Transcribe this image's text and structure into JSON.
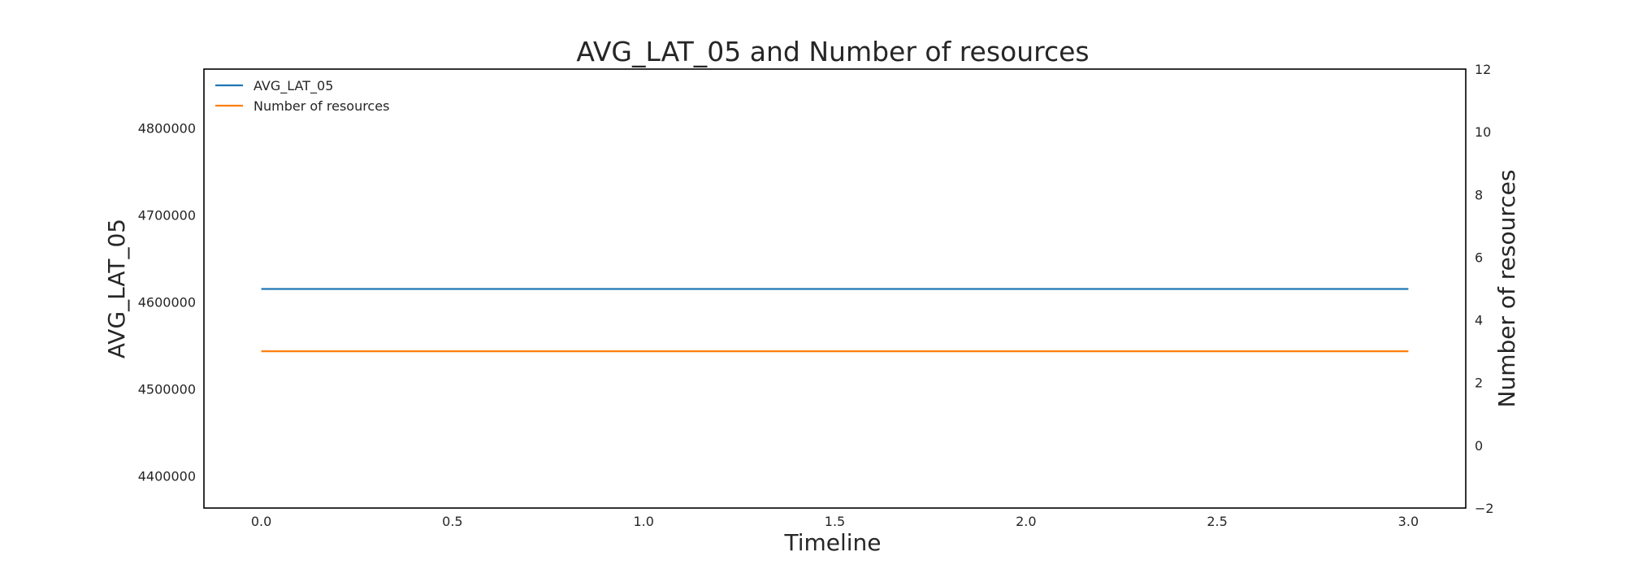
{
  "chart_data": {
    "type": "line",
    "title": "AVG_LAT_05 and Number of resources",
    "xlabel": "Timeline",
    "ylabel": "AVG_LAT_05",
    "y2label": "Number of resources",
    "x": [
      0,
      1,
      2,
      3
    ],
    "xlim": [
      -0.15,
      3.15
    ],
    "xticks": [
      0.0,
      0.5,
      1.0,
      1.5,
      2.0,
      2.5,
      3.0
    ],
    "xtick_labels": [
      "0.0",
      "0.5",
      "1.0",
      "1.5",
      "2.0",
      "2.5",
      "3.0"
    ],
    "ylim": [
      4363000,
      4868000
    ],
    "yticks": [
      4400000,
      4500000,
      4600000,
      4700000,
      4800000
    ],
    "ytick_labels": [
      "4400000",
      "4500000",
      "4600000",
      "4700000",
      "4800000"
    ],
    "y2lim": [
      -2,
      12
    ],
    "y2ticks": [
      -2,
      0,
      2,
      4,
      6,
      8,
      10,
      12
    ],
    "y2tick_labels": [
      "−2",
      "0",
      "2",
      "4",
      "6",
      "8",
      "10",
      "12"
    ],
    "series": [
      {
        "name": "AVG_LAT_05",
        "axis": "left",
        "color": "#1f77b4",
        "values": [
          4615000,
          4615000,
          4615000,
          4615000
        ]
      },
      {
        "name": "Number of resources",
        "axis": "right",
        "color": "#ff7f0e",
        "values": [
          3,
          3,
          3,
          3
        ]
      }
    ],
    "legend_position": "top-left",
    "grid": false
  }
}
